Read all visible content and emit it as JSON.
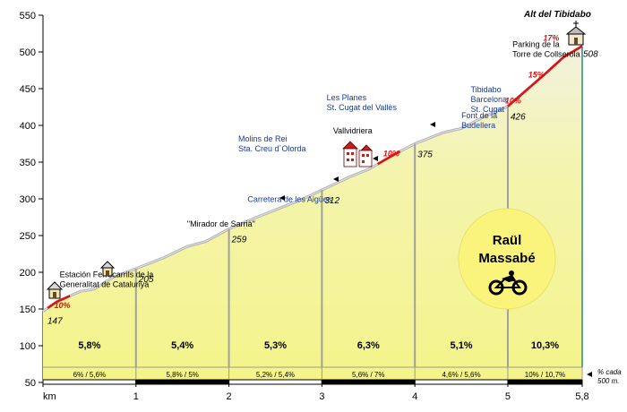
{
  "chart_data": {
    "type": "area",
    "title": "Alt del Tibidabo",
    "xlabel": "km",
    "ylabel": "",
    "xlim": [
      0,
      5.8
    ],
    "ylim": [
      50,
      550
    ],
    "x_ticks": [
      "km",
      "1",
      "2",
      "3",
      "4",
      "5",
      "5,8"
    ],
    "y_ticks": [
      50,
      100,
      150,
      200,
      250,
      300,
      350,
      400,
      450,
      500,
      550
    ],
    "profile": [
      [
        0,
        147
      ],
      [
        0.15,
        160
      ],
      [
        0.4,
        174
      ],
      [
        0.55,
        177
      ],
      [
        0.75,
        193
      ],
      [
        1.0,
        205
      ],
      [
        1.3,
        220
      ],
      [
        1.55,
        235
      ],
      [
        1.75,
        242
      ],
      [
        2.0,
        259
      ],
      [
        2.3,
        275
      ],
      [
        2.6,
        290
      ],
      [
        2.8,
        300
      ],
      [
        3.0,
        312
      ],
      [
        3.3,
        330
      ],
      [
        3.5,
        340
      ],
      [
        3.8,
        362
      ],
      [
        4.0,
        375
      ],
      [
        4.3,
        390
      ],
      [
        4.5,
        396
      ],
      [
        4.75,
        412
      ],
      [
        5.0,
        426
      ],
      [
        5.2,
        448
      ],
      [
        5.4,
        470
      ],
      [
        5.6,
        493
      ],
      [
        5.8,
        508
      ]
    ],
    "km_markers": [
      {
        "x": 0,
        "elev_label": "147"
      },
      {
        "x": 1,
        "elev_label": "205"
      },
      {
        "x": 2,
        "elev_label": "259"
      },
      {
        "x": 3,
        "elev_label": "312"
      },
      {
        "x": 4,
        "elev_label": "375"
      },
      {
        "x": 5,
        "elev_label": "426"
      },
      {
        "x": 5.8,
        "elev_label": "508"
      }
    ],
    "segments": [
      {
        "from": 0,
        "to": 1,
        "avg": "5,8%",
        "range": "6%  /  5,6%"
      },
      {
        "from": 1,
        "to": 2,
        "avg": "5,4%",
        "range": "5,8%  /  5%"
      },
      {
        "from": 2,
        "to": 3,
        "avg": "5,3%",
        "range": "5,2%  /  5,4%"
      },
      {
        "from": 3,
        "to": 4,
        "avg": "6,3%",
        "range": "5,6%  /  7%"
      },
      {
        "from": 4,
        "to": 5,
        "avg": "5,1%",
        "range": "4,6%  /  5,6%"
      },
      {
        "from": 5,
        "to": 5.8,
        "avg": "10,3%",
        "range": "10%  /  10,7%"
      }
    ],
    "steep_sections": [
      {
        "from": 0.05,
        "to": 0.3,
        "label": "10%",
        "lx": 0.12,
        "ly": 151
      },
      {
        "from": 3.6,
        "to": 3.85,
        "label": "10%",
        "lx": 3.66,
        "ly": 358
      },
      {
        "from": 5.0,
        "to": 5.8,
        "label": "10%",
        "lx": 4.97,
        "ly": 430
      },
      {
        "from": 5.0,
        "to": 5.8,
        "label": "15%",
        "lx": 5.22,
        "ly": 465
      },
      {
        "from": 5.0,
        "to": 5.8,
        "label": "17%",
        "lx": 5.38,
        "ly": 515
      }
    ],
    "places": [
      {
        "lines": [
          "Estación Ferrocarrils de la",
          "Generalitat de Catalunya"
        ],
        "x": 0.18,
        "y": 193,
        "color": "black"
      },
      {
        "lines": [
          "\"Mirador de Sarrià\""
        ],
        "x": 1.55,
        "y": 262,
        "color": "black"
      },
      {
        "lines": [
          "Carretera de les Aigües"
        ],
        "x": 2.2,
        "y": 296,
        "color": "blue"
      },
      {
        "lines": [
          "Molins de Rei",
          "Sta. Creu d´Olorda"
        ],
        "x": 2.1,
        "y": 378,
        "color": "blue"
      },
      {
        "lines": [
          "Vallvidriera"
        ],
        "x": 3.12,
        "y": 389,
        "color": "black"
      },
      {
        "lines": [
          "Les Planes",
          "St. Cugat del Vallès"
        ],
        "x": 3.05,
        "y": 434,
        "color": "blue"
      },
      {
        "lines": [
          "Font de la",
          "Budellera"
        ],
        "x": 4.5,
        "y": 410,
        "color": "blue"
      },
      {
        "lines": [
          "Tibidabo",
          "Barcelona",
          "St. Cugat"
        ],
        "x": 4.6,
        "y": 445,
        "color": "blue"
      },
      {
        "lines": [
          "Parking de la",
          "Torre de Collserola"
        ],
        "x": 5.05,
        "y": 507,
        "color": "black"
      }
    ],
    "rider": [
      "Raül",
      "Massabé"
    ],
    "footnote": [
      "% cada",
      "500 m."
    ],
    "colors": {
      "fill": "#f6f6a0",
      "line": "#a8a8a8",
      "steep": "#e01010",
      "rider_circle": "#fbf47c"
    },
    "grid": false
  }
}
